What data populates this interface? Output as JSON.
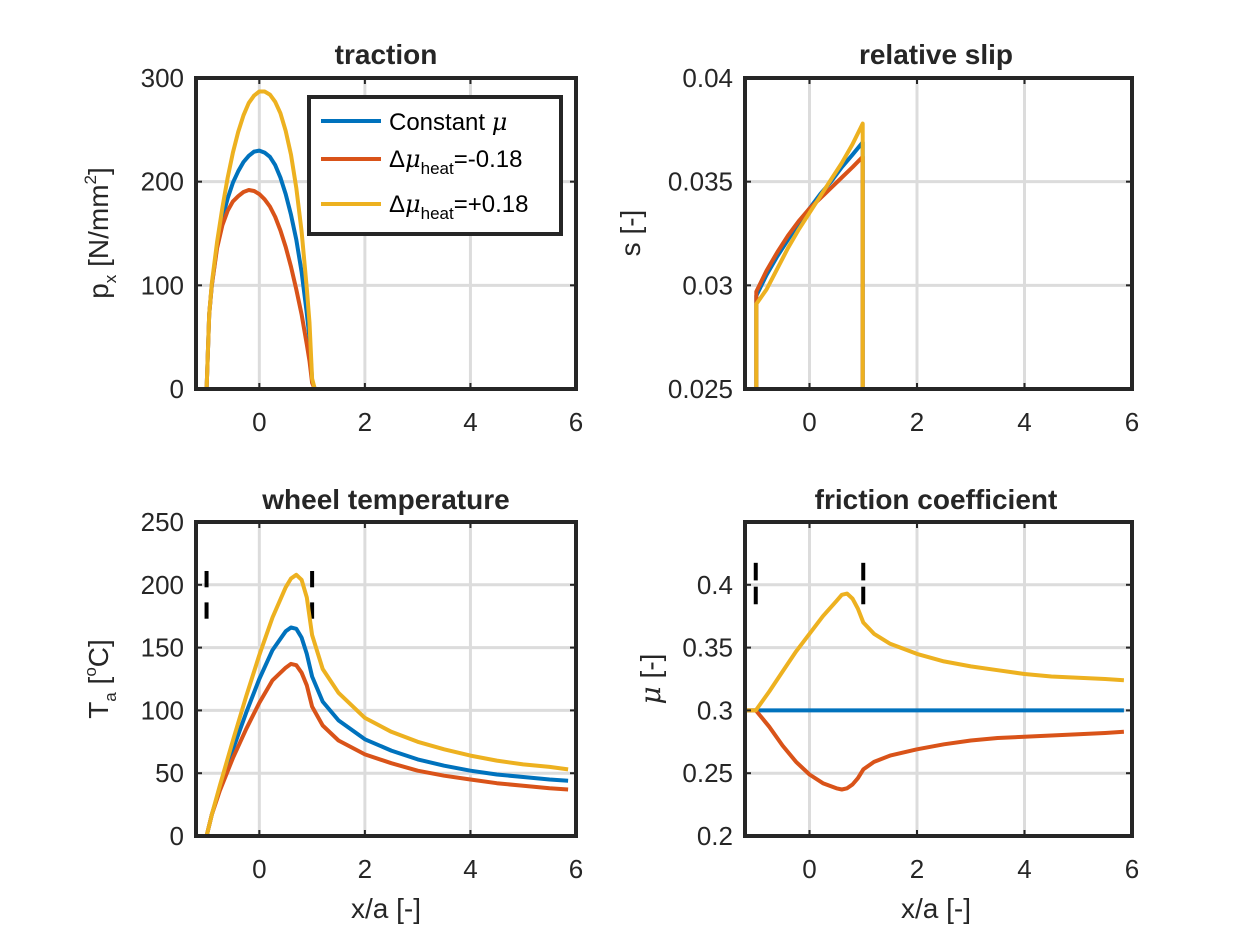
{
  "chart_data": [
    {
      "type": "line",
      "title": "traction",
      "xlabel": "",
      "ylabel_main": "p",
      "ylabel_sub": "x",
      "ylabel_rest": " [N/mm",
      "ylabel_sup": "2",
      "ylabel_end": "]",
      "xlim": [
        -1.2,
        6
      ],
      "ylim": [
        0,
        300
      ],
      "xticks": [
        "0",
        "2",
        "4",
        "6"
      ],
      "yticks": [
        "0",
        "100",
        "200",
        "300"
      ],
      "grid": true,
      "legend": {
        "placement": "top-right",
        "entries": [
          {
            "text": "Constant ",
            "symbol": "μ",
            "sub": "",
            "tail": ""
          },
          {
            "text": "Δ",
            "symbol": "μ",
            "sub": "heat",
            "tail": "=-0.18"
          },
          {
            "text": "Δ",
            "symbol": "μ",
            "sub": "heat",
            "tail": "=+0.18"
          }
        ]
      },
      "series": [
        {
          "color": "#0072BD",
          "x": [
            -1.2,
            -1.0,
            -0.95,
            -0.9,
            -0.8,
            -0.7,
            -0.6,
            -0.5,
            -0.4,
            -0.3,
            -0.2,
            -0.1,
            0.0,
            0.1,
            0.2,
            0.3,
            0.4,
            0.5,
            0.6,
            0.7,
            0.8,
            0.9,
            0.95,
            1.0,
            1.05,
            6.0
          ],
          "y": [
            0,
            0,
            72,
            100,
            138,
            165,
            184,
            199,
            210,
            219,
            225,
            229,
            230,
            228,
            224,
            216,
            204,
            188,
            168,
            144,
            113,
            73,
            49,
            8,
            0,
            0
          ]
        },
        {
          "color": "#D95319",
          "x": [
            -1.2,
            -1.0,
            -0.95,
            -0.9,
            -0.8,
            -0.7,
            -0.6,
            -0.5,
            -0.4,
            -0.3,
            -0.2,
            -0.1,
            0.0,
            0.1,
            0.2,
            0.3,
            0.4,
            0.5,
            0.6,
            0.7,
            0.8,
            0.9,
            0.95,
            1.0,
            1.05,
            6.0
          ],
          "y": [
            0,
            0,
            72,
            100,
            136,
            158,
            172,
            181,
            186,
            190,
            192,
            191,
            188,
            183,
            176,
            166,
            153,
            137,
            118,
            96,
            72,
            43,
            27,
            6,
            0,
            0
          ]
        },
        {
          "color": "#EDB120",
          "x": [
            -1.2,
            -1.0,
            -0.95,
            -0.9,
            -0.8,
            -0.7,
            -0.6,
            -0.5,
            -0.4,
            -0.3,
            -0.2,
            -0.1,
            0.0,
            0.1,
            0.2,
            0.3,
            0.4,
            0.5,
            0.6,
            0.7,
            0.8,
            0.9,
            0.95,
            1.0,
            1.05,
            6.0
          ],
          "y": [
            0,
            0,
            72,
            102,
            142,
            175,
            204,
            228,
            248,
            264,
            276,
            283,
            287,
            287,
            284,
            277,
            266,
            249,
            226,
            194,
            152,
            97,
            64,
            10,
            0,
            0
          ]
        }
      ]
    },
    {
      "type": "line",
      "title": "relative slip",
      "xlabel": "",
      "ylabel": "s [-]",
      "xlim": [
        -1.2,
        6
      ],
      "ylim": [
        0.025,
        0.04
      ],
      "xticks": [
        "0",
        "2",
        "4",
        "6"
      ],
      "yticks": [
        "0.025",
        "0.03",
        "0.035",
        "0.04"
      ],
      "grid": true,
      "series": [
        {
          "color": "#0072BD",
          "x": [
            -0.99,
            -0.99,
            -0.8,
            -0.6,
            -0.4,
            -0.2,
            0.0,
            0.2,
            0.4,
            0.6,
            0.8,
            0.99,
            0.99
          ],
          "y": [
            0.025,
            0.0295,
            0.0305,
            0.0314,
            0.0322,
            0.033,
            0.0337,
            0.0344,
            0.035,
            0.0357,
            0.0363,
            0.0369,
            0.025
          ]
        },
        {
          "color": "#D95319",
          "x": [
            -0.99,
            -0.99,
            -0.8,
            -0.6,
            -0.4,
            -0.2,
            0.0,
            0.2,
            0.4,
            0.6,
            0.8,
            0.99,
            0.99
          ],
          "y": [
            0.025,
            0.0297,
            0.0307,
            0.0316,
            0.0324,
            0.0331,
            0.0337,
            0.0342,
            0.0347,
            0.0352,
            0.0357,
            0.0362,
            0.025
          ]
        },
        {
          "color": "#EDB120",
          "x": [
            -0.99,
            -0.99,
            -0.8,
            -0.6,
            -0.4,
            -0.2,
            0.0,
            0.2,
            0.4,
            0.6,
            0.8,
            0.99,
            0.99
          ],
          "y": [
            0.025,
            0.0291,
            0.0298,
            0.0308,
            0.0318,
            0.0327,
            0.0335,
            0.0343,
            0.0351,
            0.0359,
            0.0368,
            0.0378,
            0.025
          ]
        }
      ]
    },
    {
      "type": "line",
      "title": "wheel temperature",
      "xlabel": "x/a [-]",
      "ylabel_main": "T",
      "ylabel_sub": "a",
      "ylabel_rest": " [",
      "ylabel_sup": "o",
      "ylabel_end": "C]",
      "xlim": [
        -1.2,
        6
      ],
      "ylim": [
        0,
        250
      ],
      "xticks": [
        "0",
        "2",
        "4",
        "6"
      ],
      "yticks": [
        "0",
        "50",
        "100",
        "150",
        "200",
        "250"
      ],
      "grid": true,
      "markers_x": [
        -1,
        1
      ],
      "markers_y": [
        [
          198,
          211
        ],
        [
          173,
          186
        ]
      ],
      "series": [
        {
          "color": "#0072BD",
          "x": [
            -1.2,
            -1.0,
            -0.9,
            -0.75,
            -0.5,
            -0.25,
            0.0,
            0.25,
            0.5,
            0.6,
            0.7,
            0.8,
            0.9,
            1.0,
            1.2,
            1.5,
            2.0,
            2.5,
            3.0,
            3.5,
            4.0,
            4.5,
            5.0,
            5.5,
            5.85
          ],
          "y": [
            0,
            0,
            17,
            38,
            69,
            98,
            125,
            148,
            163,
            166,
            165,
            158,
            145,
            127,
            107,
            92,
            77,
            68,
            61,
            56,
            52,
            49,
            47,
            45,
            44
          ]
        },
        {
          "color": "#D95319",
          "x": [
            -1.2,
            -1.0,
            -0.9,
            -0.75,
            -0.5,
            -0.25,
            0.0,
            0.25,
            0.5,
            0.6,
            0.7,
            0.8,
            0.9,
            1.0,
            1.2,
            1.5,
            2.0,
            2.5,
            3.0,
            3.5,
            4.0,
            4.5,
            5.0,
            5.5,
            5.85
          ],
          "y": [
            0,
            0,
            17,
            36,
            62,
            85,
            106,
            124,
            134,
            137,
            136,
            130,
            120,
            103,
            88,
            76,
            65,
            58,
            52,
            48,
            45,
            42,
            40,
            38,
            37
          ]
        },
        {
          "color": "#EDB120",
          "x": [
            -1.2,
            -1.0,
            -0.9,
            -0.75,
            -0.5,
            -0.25,
            0.0,
            0.25,
            0.5,
            0.6,
            0.7,
            0.8,
            0.9,
            1.0,
            1.2,
            1.5,
            2.0,
            2.5,
            3.0,
            3.5,
            4.0,
            4.5,
            5.0,
            5.5,
            5.85
          ],
          "y": [
            0,
            0,
            17,
            40,
            76,
            111,
            144,
            174,
            198,
            205,
            208,
            204,
            190,
            160,
            133,
            114,
            94,
            83,
            75,
            69,
            64,
            60,
            57,
            55,
            53
          ]
        }
      ]
    },
    {
      "type": "line",
      "title": "friction coefficient",
      "xlabel": "x/a [-]",
      "ylabel_symbol": "μ",
      "ylabel_rest": " [-]",
      "xlim": [
        -1.2,
        6
      ],
      "ylim": [
        0.2,
        0.45
      ],
      "xticks": [
        "0",
        "2",
        "4",
        "6"
      ],
      "yticks": [
        "0.2",
        "0.25",
        "0.3",
        "0.35",
        "0.4"
      ],
      "grid": true,
      "markers_x": [
        -1,
        1
      ],
      "markers_y": [
        [
          0.4035,
          0.4175
        ],
        [
          0.3845,
          0.3985
        ]
      ],
      "series": [
        {
          "color": "#0072BD",
          "x": [
            -1.2,
            5.85
          ],
          "y": [
            0.3,
            0.3
          ]
        },
        {
          "color": "#D95319",
          "x": [
            -1.2,
            -1.0,
            -0.75,
            -0.5,
            -0.25,
            0.0,
            0.25,
            0.5,
            0.6,
            0.7,
            0.8,
            0.9,
            1.0,
            1.2,
            1.5,
            2.0,
            2.5,
            3.0,
            3.5,
            4.0,
            4.5,
            5.0,
            5.5,
            5.85
          ],
          "y": [
            0.3,
            0.3,
            0.287,
            0.272,
            0.259,
            0.249,
            0.242,
            0.238,
            0.237,
            0.238,
            0.241,
            0.246,
            0.253,
            0.259,
            0.264,
            0.269,
            0.273,
            0.276,
            0.278,
            0.279,
            0.28,
            0.281,
            0.282,
            0.283
          ]
        },
        {
          "color": "#EDB120",
          "x": [
            -1.2,
            -1.0,
            -0.75,
            -0.5,
            -0.25,
            0.0,
            0.25,
            0.5,
            0.6,
            0.7,
            0.8,
            0.9,
            1.0,
            1.2,
            1.5,
            2.0,
            2.5,
            3.0,
            3.5,
            4.0,
            4.5,
            5.0,
            5.5,
            5.85
          ],
          "y": [
            0.3,
            0.3,
            0.315,
            0.331,
            0.347,
            0.361,
            0.375,
            0.387,
            0.392,
            0.393,
            0.389,
            0.381,
            0.37,
            0.361,
            0.353,
            0.345,
            0.339,
            0.335,
            0.332,
            0.329,
            0.327,
            0.326,
            0.325,
            0.324
          ]
        }
      ]
    }
  ]
}
